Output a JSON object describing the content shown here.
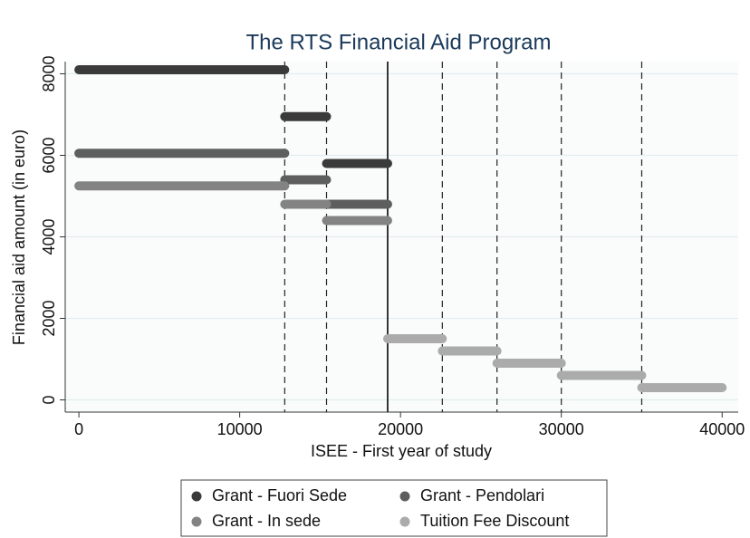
{
  "chart_data": {
    "type": "line",
    "title": "The RTS Financial Aid Program",
    "x_label": "ISEE - First year of study",
    "y_label": "Financial aid amount (in euro)",
    "xlim": [
      -850,
      41000
    ],
    "ylim": [
      -300,
      8300
    ],
    "xticks": [
      0,
      10000,
      20000,
      30000,
      40000
    ],
    "yticks": [
      0,
      2000,
      4000,
      6000,
      8000
    ],
    "grid": true,
    "legend_position": "bottom",
    "vlines": [
      {
        "x": 12800,
        "style": "dashed"
      },
      {
        "x": 15400,
        "style": "dashed"
      },
      {
        "x": 19200,
        "style": "solid"
      },
      {
        "x": 22600,
        "style": "dashed"
      },
      {
        "x": 26000,
        "style": "dashed"
      },
      {
        "x": 30000,
        "style": "dashed"
      },
      {
        "x": 35000,
        "style": "dashed"
      }
    ],
    "series": [
      {
        "name": "Grant - Fuori Sede",
        "color": "#3a3a3a",
        "x": [
          0,
          12800,
          12800,
          12800,
          15400,
          15400,
          15400,
          19200
        ],
        "values": [
          8100,
          8100,
          null,
          6950,
          6950,
          null,
          5800,
          5800
        ]
      },
      {
        "name": "Grant - Pendolari",
        "color": "#5e5e5e",
        "x": [
          0,
          12800,
          12800,
          12800,
          15400,
          15400,
          15400,
          19200
        ],
        "values": [
          6050,
          6050,
          null,
          5400,
          5400,
          null,
          4800,
          4800
        ]
      },
      {
        "name": "Grant - In sede",
        "color": "#838383",
        "x": [
          0,
          12800,
          12800,
          12800,
          15400,
          15400,
          15400,
          19200
        ],
        "values": [
          5250,
          5250,
          null,
          4800,
          4800,
          null,
          4400,
          4400
        ]
      },
      {
        "name": "Tuition Fee Discount",
        "color": "#ababab",
        "x": [
          19200,
          22600,
          22600,
          22600,
          26000,
          26000,
          26000,
          30000,
          30000,
          30000,
          35000,
          35000,
          35000,
          40000
        ],
        "values": [
          1500,
          1500,
          null,
          1200,
          1200,
          null,
          900,
          900,
          null,
          600,
          600,
          null,
          300,
          300
        ]
      }
    ]
  }
}
